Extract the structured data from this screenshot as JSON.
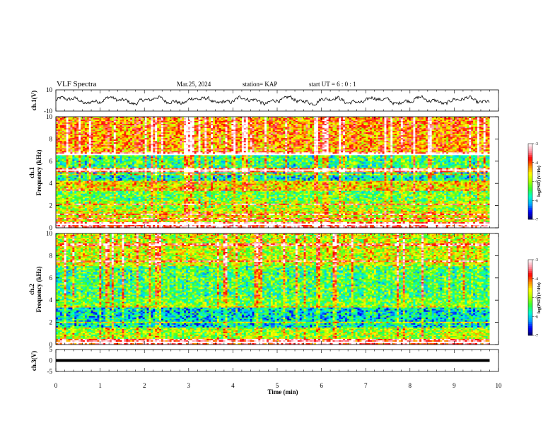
{
  "header": {
    "title": "VLF Spectra",
    "date": "Mar.25, 2024",
    "station": "station= KAP",
    "start": "start  UT =  6 : 0 : 1"
  },
  "chart_data": [
    {
      "type": "line",
      "panel": "ch1-waveform",
      "ylabel": "ch.1(V)",
      "ylim": [
        -10,
        10
      ],
      "yticks": [
        "10",
        "-10"
      ],
      "xlim": [
        0,
        10
      ],
      "color": "#000000",
      "description_level": "noisy waveform oscillating roughly between -5 and 5 V",
      "amplitude": 4.5
    },
    {
      "type": "heatmap",
      "panel": "ch1-spectrogram",
      "ylabel": "ch.1\nFrequency (kHz)",
      "ylabel_line1": "ch.1",
      "ylabel_line2": "Frequency (kHz)",
      "ylim": [
        0,
        10
      ],
      "yticks": [
        "10",
        "8",
        "6",
        "4",
        "2",
        "0"
      ],
      "xlim": [
        0,
        9.8
      ],
      "z_scale": "log",
      "zlim": [
        -7,
        -3
      ],
      "bands": [
        {
          "f": [
            0.0,
            0.5
          ],
          "level": -3.4
        },
        {
          "f": [
            0.5,
            1.5
          ],
          "level": -4.7
        },
        {
          "f": [
            1.5,
            2.5
          ],
          "level": -5.0
        },
        {
          "f": [
            2.5,
            3.5
          ],
          "level": -5.3
        },
        {
          "f": [
            3.5,
            4.2
          ],
          "level": -4.6
        },
        {
          "f": [
            4.2,
            5.0
          ],
          "level": -5.8
        },
        {
          "f": [
            5.0,
            5.4
          ],
          "level": -3.8
        },
        {
          "f": [
            5.4,
            6.5
          ],
          "level": -5.5
        },
        {
          "f": [
            6.5,
            6.8
          ],
          "level": -3.3
        },
        {
          "f": [
            6.8,
            10.0
          ],
          "level": -4.2
        }
      ],
      "lines_khz": [
        0.3,
        0.8,
        1.2,
        2.1,
        3.4,
        4.8,
        5.2,
        6.6
      ]
    },
    {
      "type": "heatmap",
      "panel": "ch2-spectrogram",
      "ylabel_line1": "ch.2",
      "ylabel_line2": "Frequency (kHz)",
      "ylim": [
        0,
        10
      ],
      "yticks": [
        "10",
        "8",
        "6",
        "4",
        "2",
        "0"
      ],
      "xlim": [
        0,
        9.8
      ],
      "z_scale": "log",
      "zlim": [
        -7,
        -3
      ],
      "bands": [
        {
          "f": [
            0.0,
            0.5
          ],
          "level": -3.6
        },
        {
          "f": [
            0.5,
            1.5
          ],
          "level": -5.0
        },
        {
          "f": [
            1.5,
            3.4
          ],
          "level": -5.9
        },
        {
          "f": [
            3.4,
            4.2
          ],
          "level": -5.2
        },
        {
          "f": [
            4.2,
            7.0
          ],
          "level": -5.4
        },
        {
          "f": [
            7.0,
            10.0
          ],
          "level": -4.8
        }
      ],
      "lines_khz": [
        0.2,
        2.0,
        3.4,
        7.5,
        9.0
      ]
    },
    {
      "type": "line",
      "panel": "ch3-waveform",
      "ylabel": "ch.3(V)",
      "ylim": [
        -5,
        5
      ],
      "yticks": [
        "5",
        "0",
        "-5"
      ],
      "xlim": [
        0,
        9.8
      ],
      "level": 0,
      "color": "#000000"
    }
  ],
  "colorbars": [
    {
      "title": "log(PSD) (V²/Hz)",
      "ticks": [
        "-3",
        "-4",
        "-5",
        "-6",
        "-7"
      ],
      "zlim": [
        -7,
        -3
      ]
    },
    {
      "title": "log(PSD) (V²/Hz)",
      "ticks": [
        "-3",
        "-4",
        "-5",
        "-6",
        "-7"
      ],
      "zlim": [
        -7,
        -3
      ]
    }
  ],
  "x_axis": {
    "label": "Time (min)",
    "ticks": [
      "0",
      "1",
      "2",
      "3",
      "4",
      "5",
      "6",
      "7",
      "8",
      "9",
      "10"
    ],
    "range": [
      0,
      10
    ]
  },
  "colormap": [
    "#000066",
    "#0000ff",
    "#00aaff",
    "#00ffcc",
    "#33ff33",
    "#aaff00",
    "#ffff00",
    "#ff8800",
    "#ff0000",
    "#ff99aa",
    "#ffffff"
  ]
}
